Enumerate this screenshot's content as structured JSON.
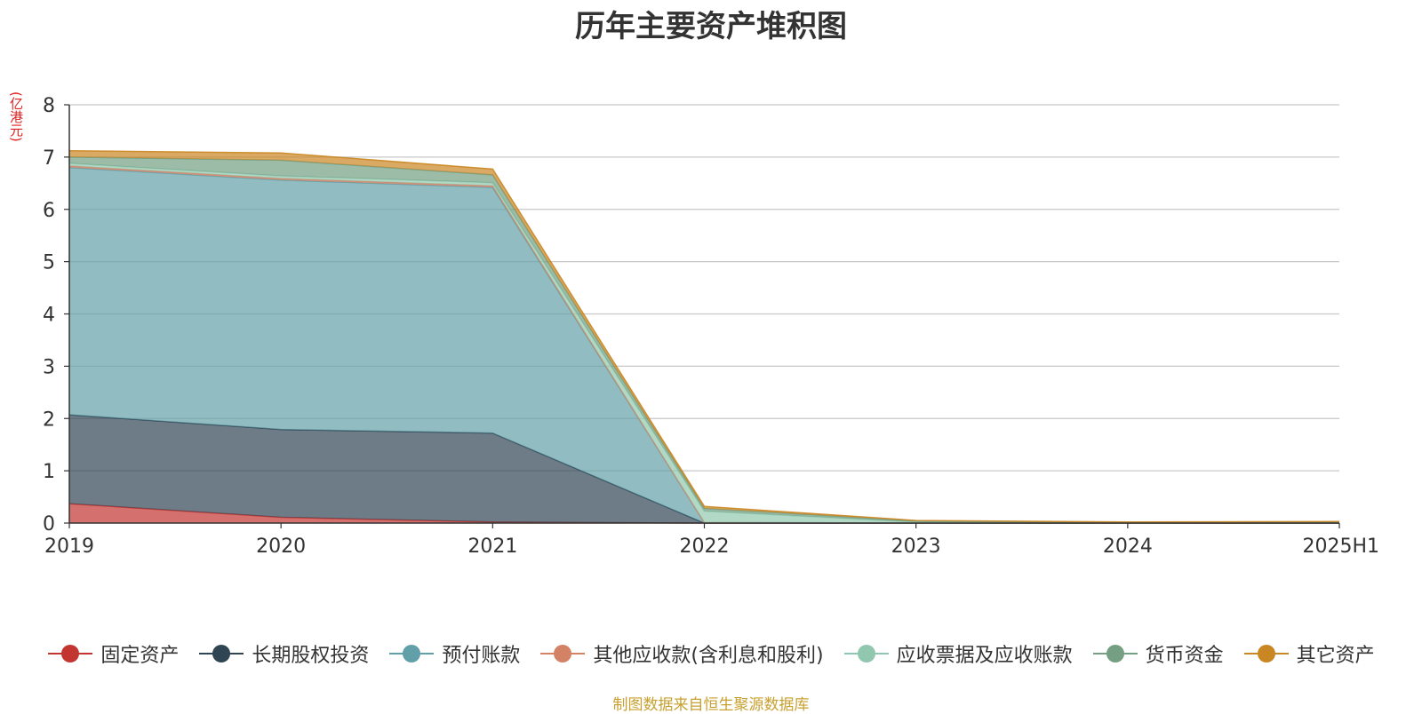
{
  "chart_data": {
    "type": "area",
    "stacked": true,
    "title": "历年主要资产堆积图",
    "ylabel": "(亿港元)",
    "xlabel": "",
    "categories": [
      "2019",
      "2020",
      "2021",
      "2022",
      "2023",
      "2024",
      "2025H1"
    ],
    "ylim": [
      0,
      8
    ],
    "yticks": [
      "0",
      "1",
      "2",
      "3",
      "4",
      "5",
      "6",
      "7",
      "8"
    ],
    "grid": true,
    "legend_position": "bottom",
    "series": [
      {
        "name": "固定资产",
        "color": "#c23531",
        "values": [
          0.37,
          0.11,
          0.02,
          0.0,
          0.0,
          0.0,
          0.0
        ]
      },
      {
        "name": "长期股权投资",
        "color": "#2f4554",
        "values": [
          1.7,
          1.68,
          1.7,
          0.0,
          0.0,
          0.0,
          0.0
        ]
      },
      {
        "name": "预付账款",
        "color": "#61a0a8",
        "values": [
          4.73,
          4.77,
          4.7,
          0.01,
          0.0,
          0.0,
          0.0
        ]
      },
      {
        "name": "其他应收款(含利息和股利)",
        "color": "#d48265",
        "values": [
          0.03,
          0.03,
          0.03,
          0.0,
          0.0,
          0.0,
          0.0
        ]
      },
      {
        "name": "应收票据及应收账款",
        "color": "#91c7ae",
        "values": [
          0.05,
          0.05,
          0.06,
          0.22,
          0.02,
          0.0,
          0.01
        ]
      },
      {
        "name": "货币资金",
        "color": "#749f83",
        "values": [
          0.12,
          0.3,
          0.15,
          0.05,
          0.02,
          0.01,
          0.01
        ]
      },
      {
        "name": "其它资产",
        "color": "#ca8622",
        "values": [
          0.12,
          0.14,
          0.11,
          0.04,
          0.01,
          0.01,
          0.01
        ]
      }
    ]
  },
  "unit_color": "#e02020",
  "source_note": "制图数据来自恒生聚源数据库",
  "source_color": "#c8a030"
}
